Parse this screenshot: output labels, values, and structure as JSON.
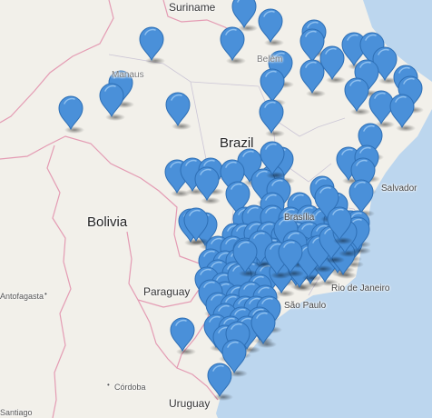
{
  "map": {
    "labels": {
      "suriname": "Suriname",
      "manaus": "Manaus",
      "belem": "Belém",
      "brazil": "Brazil",
      "salvador": "Salvador",
      "bolivia": "Bolivia",
      "brasilia": "Brasília",
      "paraguay": "Paraguay",
      "rio": "Rio de Janeiro",
      "sao_paulo": "São Paulo",
      "antofagasta": "Antofagasta",
      "cordoba": "Córdoba",
      "santiago": "Santiago",
      "uruguay": "Uruguay"
    },
    "colors": {
      "ocean": "#bcd6ee",
      "land": "#f2f0ea",
      "border": "#e49bb3",
      "state_border": "#ccc6d6",
      "marker": "#4a90d9",
      "marker_outline": "#2e6fb5"
    },
    "marker_icon": "map-pin-icon",
    "marker_count": 137
  }
}
